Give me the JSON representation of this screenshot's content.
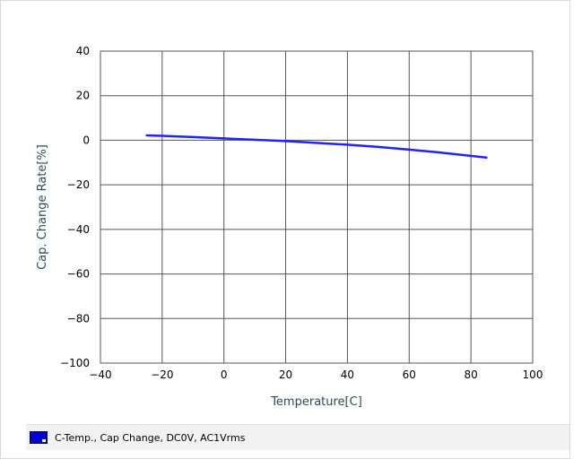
{
  "chart_data": {
    "type": "line",
    "xlabel": "Temperature[C]",
    "ylabel": "Cap. Change Rate[%]",
    "xlim": [
      -40,
      100
    ],
    "ylim": [
      -100,
      40
    ],
    "x_ticks": [
      -40,
      -20,
      0,
      20,
      40,
      60,
      80,
      100
    ],
    "y_ticks": [
      40,
      20,
      0,
      -20,
      -40,
      -60,
      -80,
      -100
    ],
    "grid": true,
    "legend_position": "bottom",
    "series": [
      {
        "name": "C-Temp., Cap Change, DC0V, AC1Vrms",
        "color": "#2222ff",
        "x": [
          -25,
          -20,
          -10,
          0,
          10,
          20,
          30,
          40,
          50,
          60,
          70,
          85
        ],
        "y": [
          2.2,
          2.0,
          1.4,
          0.8,
          0.2,
          -0.4,
          -1.2,
          -2.0,
          -3.0,
          -4.2,
          -5.5,
          -7.8
        ]
      }
    ]
  }
}
